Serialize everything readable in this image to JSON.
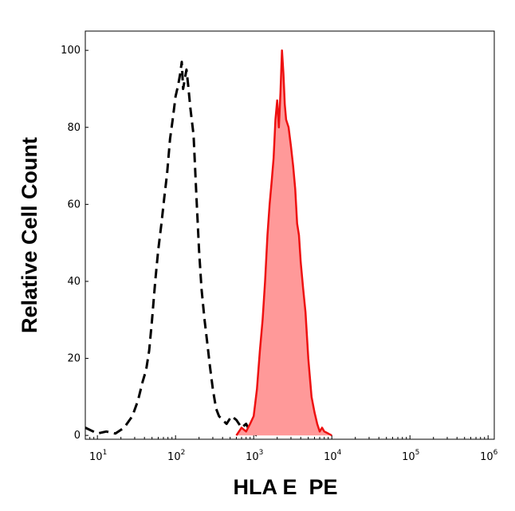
{
  "chart_data": {
    "type": "area",
    "xlabel": "HLA E  PE",
    "ylabel": "Relative Cell Count",
    "x_scale": "log",
    "xlim": [
      7,
      1200000
    ],
    "ylim": [
      -1,
      105
    ],
    "y_ticks": [
      0,
      20,
      40,
      60,
      80,
      100
    ],
    "y_tick_labels": [
      "0",
      "20",
      "40",
      "60",
      "80",
      "100"
    ],
    "x_ticks": [
      10,
      100,
      1000,
      10000,
      100000,
      1000000
    ],
    "x_tick_labels": [
      {
        "base": "10",
        "exp": "1"
      },
      {
        "base": "10",
        "exp": "2"
      },
      {
        "base": "10",
        "exp": "3"
      },
      {
        "base": "10",
        "exp": "4"
      },
      {
        "base": "10",
        "exp": "5"
      },
      {
        "base": "10",
        "exp": "6"
      }
    ],
    "grid": false,
    "legend": "none",
    "series": [
      {
        "style": "dashed",
        "color": "#000000",
        "fill": "none",
        "x": [
          7,
          10,
          13,
          17,
          22,
          28,
          33,
          38,
          42,
          46,
          50,
          55,
          60,
          66,
          72,
          78,
          85,
          92,
          100,
          108,
          115,
          120,
          125,
          130,
          138,
          145,
          155,
          170,
          185,
          200,
          215,
          235,
          255,
          275,
          300,
          330,
          360,
          400,
          450,
          520,
          600,
          700,
          800,
          900,
          1000,
          1100
        ],
        "y": [
          2,
          0.5,
          1,
          0.5,
          2,
          5,
          9,
          14,
          17,
          22,
          30,
          40,
          48,
          55,
          62,
          68,
          77,
          82,
          88,
          91,
          94,
          97,
          90,
          92,
          95,
          91,
          85,
          78,
          62,
          48,
          38,
          30,
          24,
          18,
          12,
          7,
          5,
          4,
          3,
          5,
          4,
          2,
          3,
          1,
          0.5,
          0
        ]
      },
      {
        "style": "solid",
        "color": "#ee1111",
        "fill": "#ff9999",
        "x": [
          600,
          700,
          800,
          900,
          1000,
          1100,
          1200,
          1300,
          1400,
          1500,
          1600,
          1700,
          1800,
          1900,
          2000,
          2100,
          2200,
          2300,
          2400,
          2500,
          2600,
          2800,
          3000,
          3200,
          3400,
          3600,
          3800,
          4000,
          4300,
          4600,
          5000,
          5500,
          6000,
          6500,
          7000,
          7500,
          8000,
          9000,
          10000
        ],
        "y": [
          0,
          2,
          1,
          3,
          5,
          12,
          22,
          30,
          40,
          52,
          60,
          66,
          72,
          82,
          87,
          80,
          89,
          100,
          94,
          86,
          82,
          80,
          75,
          70,
          64,
          55,
          52,
          45,
          38,
          32,
          20,
          10,
          6,
          3,
          1,
          2,
          1,
          0.5,
          0
        ]
      }
    ]
  }
}
